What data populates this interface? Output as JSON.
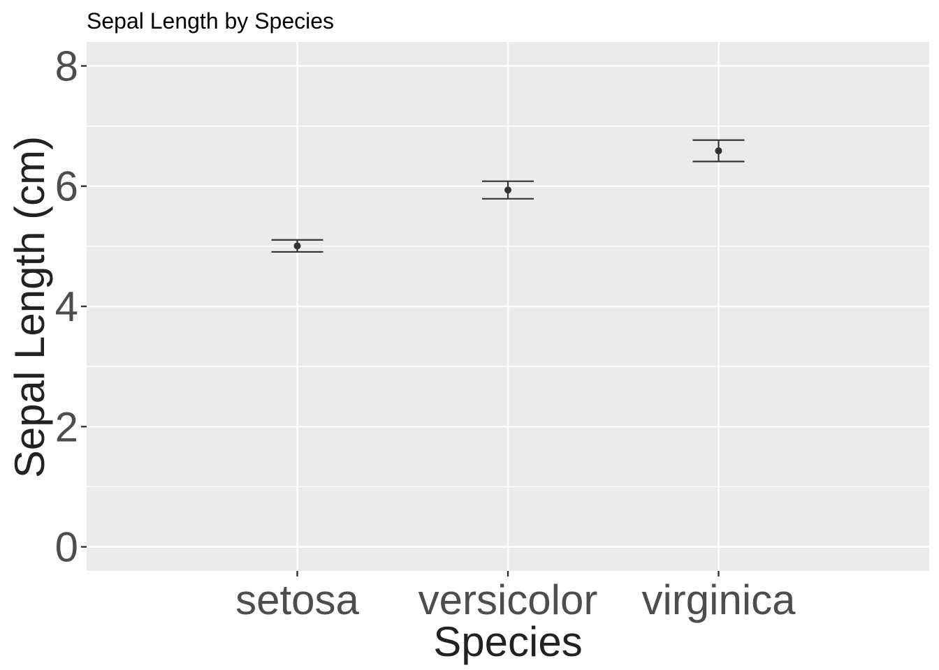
{
  "chart_data": {
    "type": "scatter",
    "title": "Sepal Length by Species",
    "xlabel": "Species",
    "ylabel": "Sepal Length (cm)",
    "categories": [
      "setosa",
      "versicolor",
      "virginica"
    ],
    "series": [
      {
        "values": [
          5.006,
          5.936,
          6.588
        ],
        "error_lower": [
          4.906,
          5.79,
          6.41
        ],
        "error_upper": [
          5.106,
          6.082,
          6.766
        ]
      }
    ],
    "yticks": [
      0,
      2,
      4,
      6,
      8
    ],
    "ylim": [
      -0.4,
      8.4
    ],
    "grid": true,
    "legend": "none",
    "colors": {
      "panel_background": "#ebebeb",
      "grid": "#ffffff",
      "points": "#333333",
      "error_bars": "#333333"
    }
  }
}
